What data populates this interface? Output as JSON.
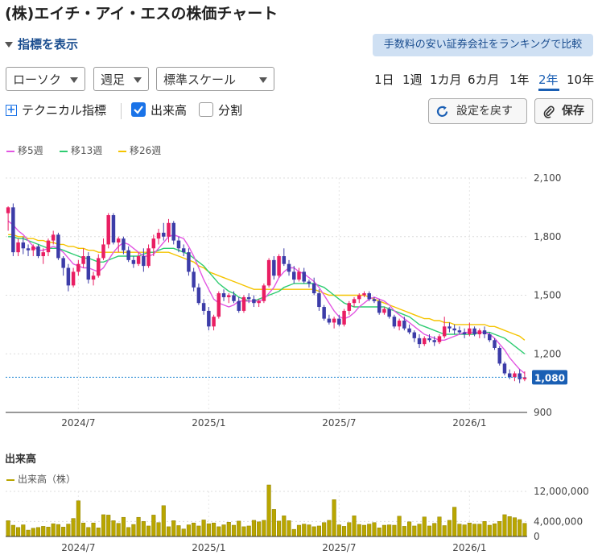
{
  "page": {
    "title": "(株)エイチ・アイ・エスの株価チャート",
    "indicator_toggle": "指標を表示",
    "ranking_link": "手数料の安い証券会社をランキングで比較"
  },
  "controls": {
    "chart_type": "ローソク",
    "interval": "週足",
    "scale": "標準スケール",
    "periods": [
      "1日",
      "1週",
      "1カ月",
      "6カ月",
      "1年",
      "2年",
      "10年"
    ],
    "active_period": "2年",
    "technical": "テクニカル指標",
    "volume_checkbox": "出来高",
    "volume_checked": true,
    "split_checkbox": "分割",
    "split_checked": false,
    "reset_button": "設定を戻す",
    "save_button": "保存"
  },
  "colors": {
    "up": "#e91e63",
    "down": "#3c3ca8",
    "ma5": "#e256e2",
    "ma13": "#2ecc71",
    "ma26": "#f5c400",
    "volume": "#b9a600",
    "price_tag": "#1a5fb4",
    "accent": "#1a73e8"
  },
  "chart_data": {
    "type": "candlestick",
    "legend": [
      {
        "name": "移5週",
        "color": "#e256e2"
      },
      {
        "name": "移13週",
        "color": "#2ecc71"
      },
      {
        "name": "移26週",
        "color": "#f5c400"
      }
    ],
    "ylim": [
      900,
      2100
    ],
    "yticks": [
      "2,100",
      "1,800",
      "1,500",
      "1,200",
      "900"
    ],
    "ytick_values": [
      2100,
      1800,
      1500,
      1200,
      900
    ],
    "xticks": [
      "2024/7",
      "2025/1",
      "2025/7",
      "2026/1"
    ],
    "xtick_index": [
      14,
      40,
      66,
      92
    ],
    "current_price": 1080,
    "current_price_label": "1,080",
    "weeks": 104,
    "candles": [
      [
        1920,
        1955,
        1830,
        1950
      ],
      [
        1950,
        1970,
        1700,
        1720
      ],
      [
        1720,
        1790,
        1700,
        1770
      ],
      [
        1770,
        1800,
        1710,
        1740
      ],
      [
        1740,
        1760,
        1700,
        1730
      ],
      [
        1730,
        1760,
        1700,
        1750
      ],
      [
        1750,
        1760,
        1690,
        1700
      ],
      [
        1700,
        1740,
        1660,
        1720
      ],
      [
        1720,
        1790,
        1700,
        1780
      ],
      [
        1780,
        1830,
        1760,
        1810
      ],
      [
        1810,
        1820,
        1680,
        1690
      ],
      [
        1690,
        1700,
        1600,
        1640
      ],
      [
        1640,
        1660,
        1520,
        1550
      ],
      [
        1550,
        1640,
        1540,
        1620
      ],
      [
        1620,
        1680,
        1600,
        1660
      ],
      [
        1660,
        1740,
        1640,
        1700
      ],
      [
        1700,
        1720,
        1560,
        1580
      ],
      [
        1580,
        1620,
        1550,
        1600
      ],
      [
        1600,
        1710,
        1590,
        1690
      ],
      [
        1690,
        1790,
        1680,
        1760
      ],
      [
        1760,
        1920,
        1740,
        1910
      ],
      [
        1910,
        1920,
        1760,
        1770
      ],
      [
        1770,
        1800,
        1720,
        1790
      ],
      [
        1790,
        1800,
        1710,
        1730
      ],
      [
        1730,
        1750,
        1670,
        1680
      ],
      [
        1680,
        1700,
        1640,
        1660
      ],
      [
        1660,
        1720,
        1650,
        1700
      ],
      [
        1700,
        1740,
        1620,
        1650
      ],
      [
        1650,
        1760,
        1640,
        1740
      ],
      [
        1740,
        1810,
        1700,
        1790
      ],
      [
        1790,
        1840,
        1760,
        1820
      ],
      [
        1820,
        1870,
        1780,
        1800
      ],
      [
        1800,
        1890,
        1770,
        1870
      ],
      [
        1870,
        1880,
        1760,
        1780
      ],
      [
        1780,
        1800,
        1720,
        1740
      ],
      [
        1740,
        1760,
        1700,
        1720
      ],
      [
        1720,
        1740,
        1600,
        1620
      ],
      [
        1620,
        1640,
        1520,
        1540
      ],
      [
        1540,
        1560,
        1450,
        1460
      ],
      [
        1460,
        1480,
        1400,
        1420
      ],
      [
        1420,
        1440,
        1320,
        1340
      ],
      [
        1340,
        1400,
        1320,
        1390
      ],
      [
        1390,
        1520,
        1380,
        1510
      ],
      [
        1510,
        1530,
        1470,
        1490
      ],
      [
        1490,
        1510,
        1460,
        1500
      ],
      [
        1500,
        1520,
        1460,
        1470
      ],
      [
        1470,
        1490,
        1410,
        1420
      ],
      [
        1420,
        1500,
        1410,
        1490
      ],
      [
        1490,
        1510,
        1460,
        1480
      ],
      [
        1480,
        1500,
        1440,
        1460
      ],
      [
        1460,
        1480,
        1440,
        1470
      ],
      [
        1470,
        1560,
        1460,
        1550
      ],
      [
        1550,
        1690,
        1540,
        1680
      ],
      [
        1680,
        1700,
        1580,
        1600
      ],
      [
        1600,
        1710,
        1590,
        1700
      ],
      [
        1700,
        1740,
        1650,
        1660
      ],
      [
        1660,
        1680,
        1600,
        1620
      ],
      [
        1620,
        1650,
        1560,
        1580
      ],
      [
        1580,
        1640,
        1570,
        1620
      ],
      [
        1620,
        1640,
        1560,
        1570
      ],
      [
        1570,
        1580,
        1540,
        1560
      ],
      [
        1560,
        1590,
        1500,
        1510
      ],
      [
        1510,
        1530,
        1420,
        1440
      ],
      [
        1440,
        1450,
        1370,
        1380
      ],
      [
        1380,
        1400,
        1350,
        1360
      ],
      [
        1360,
        1390,
        1330,
        1380
      ],
      [
        1380,
        1400,
        1340,
        1350
      ],
      [
        1350,
        1430,
        1340,
        1420
      ],
      [
        1420,
        1470,
        1400,
        1460
      ],
      [
        1460,
        1490,
        1440,
        1480
      ],
      [
        1480,
        1510,
        1460,
        1500
      ],
      [
        1500,
        1520,
        1490,
        1510
      ],
      [
        1510,
        1520,
        1470,
        1480
      ],
      [
        1480,
        1490,
        1460,
        1470
      ],
      [
        1470,
        1480,
        1400,
        1410
      ],
      [
        1410,
        1440,
        1400,
        1430
      ],
      [
        1430,
        1440,
        1380,
        1390
      ],
      [
        1390,
        1400,
        1330,
        1340
      ],
      [
        1340,
        1380,
        1320,
        1370
      ],
      [
        1370,
        1390,
        1320,
        1330
      ],
      [
        1330,
        1350,
        1300,
        1310
      ],
      [
        1310,
        1320,
        1260,
        1280
      ],
      [
        1280,
        1300,
        1230,
        1250
      ],
      [
        1250,
        1290,
        1240,
        1280
      ],
      [
        1280,
        1300,
        1260,
        1270
      ],
      [
        1270,
        1290,
        1240,
        1260
      ],
      [
        1260,
        1300,
        1250,
        1290
      ],
      [
        1290,
        1390,
        1280,
        1340
      ],
      [
        1340,
        1360,
        1310,
        1330
      ],
      [
        1330,
        1350,
        1300,
        1320
      ],
      [
        1320,
        1340,
        1300,
        1310
      ],
      [
        1310,
        1330,
        1280,
        1300
      ],
      [
        1300,
        1360,
        1290,
        1330
      ],
      [
        1330,
        1340,
        1290,
        1300
      ],
      [
        1300,
        1330,
        1280,
        1320
      ],
      [
        1320,
        1340,
        1280,
        1300
      ],
      [
        1300,
        1310,
        1260,
        1270
      ],
      [
        1270,
        1280,
        1220,
        1230
      ],
      [
        1230,
        1240,
        1140,
        1150
      ],
      [
        1150,
        1160,
        1090,
        1100
      ],
      [
        1100,
        1120,
        1070,
        1080
      ],
      [
        1080,
        1110,
        1060,
        1100
      ],
      [
        1100,
        1120,
        1050,
        1070
      ],
      [
        1070,
        1110,
        1060,
        1080
      ]
    ],
    "ma5": [
      1880,
      1860,
      1830,
      1810,
      1780,
      1750,
      1730,
      1730,
      1740,
      1750,
      1740,
      1720,
      1690,
      1660,
      1650,
      1640,
      1640,
      1630,
      1620,
      1640,
      1680,
      1720,
      1750,
      1770,
      1760,
      1740,
      1720,
      1700,
      1700,
      1710,
      1740,
      1770,
      1800,
      1810,
      1800,
      1790,
      1750,
      1700,
      1640,
      1580,
      1530,
      1480,
      1460,
      1450,
      1440,
      1450,
      1470,
      1470,
      1470,
      1470,
      1470,
      1480,
      1510,
      1540,
      1590,
      1620,
      1640,
      1640,
      1620,
      1610,
      1590,
      1570,
      1540,
      1500,
      1460,
      1420,
      1390,
      1380,
      1390,
      1410,
      1440,
      1460,
      1480,
      1490,
      1480,
      1470,
      1450,
      1420,
      1400,
      1380,
      1360,
      1340,
      1320,
      1300,
      1290,
      1280,
      1270,
      1270,
      1280,
      1290,
      1300,
      1310,
      1310,
      1310,
      1310,
      1310,
      1300,
      1280,
      1250,
      1220,
      1180,
      1150,
      1120,
      1100
    ],
    "ma13": [
      1800,
      1800,
      1790,
      1790,
      1780,
      1770,
      1760,
      1750,
      1740,
      1740,
      1740,
      1730,
      1720,
      1710,
      1700,
      1690,
      1690,
      1680,
      1670,
      1670,
      1680,
      1690,
      1700,
      1700,
      1700,
      1700,
      1700,
      1710,
      1720,
      1720,
      1730,
      1740,
      1740,
      1740,
      1730,
      1720,
      1710,
      1690,
      1670,
      1650,
      1620,
      1590,
      1560,
      1540,
      1520,
      1510,
      1490,
      1480,
      1470,
      1470,
      1480,
      1490,
      1500,
      1510,
      1520,
      1540,
      1550,
      1560,
      1560,
      1560,
      1560,
      1560,
      1550,
      1540,
      1520,
      1500,
      1480,
      1460,
      1450,
      1440,
      1440,
      1440,
      1440,
      1440,
      1440,
      1440,
      1430,
      1420,
      1410,
      1400,
      1390,
      1370,
      1350,
      1340,
      1330,
      1320,
      1310,
      1300,
      1300,
      1300,
      1300,
      1300,
      1300,
      1300,
      1310,
      1310,
      1310,
      1300,
      1290,
      1280,
      1260,
      1240,
      1220,
      1200
    ],
    "ma26": [
      1810,
      1810,
      1800,
      1800,
      1790,
      1790,
      1780,
      1780,
      1770,
      1770,
      1760,
      1760,
      1750,
      1750,
      1740,
      1740,
      1730,
      1730,
      1720,
      1720,
      1720,
      1720,
      1720,
      1720,
      1720,
      1720,
      1720,
      1720,
      1720,
      1720,
      1720,
      1720,
      1720,
      1710,
      1700,
      1690,
      1680,
      1670,
      1650,
      1640,
      1620,
      1610,
      1600,
      1590,
      1580,
      1570,
      1560,
      1550,
      1540,
      1530,
      1530,
      1530,
      1530,
      1530,
      1530,
      1530,
      1530,
      1530,
      1530,
      1530,
      1530,
      1530,
      1520,
      1510,
      1500,
      1500,
      1500,
      1500,
      1500,
      1500,
      1500,
      1500,
      1490,
      1480,
      1470,
      1460,
      1450,
      1440,
      1430,
      1420,
      1410,
      1400,
      1390,
      1380,
      1380,
      1370,
      1370,
      1360,
      1360,
      1350,
      1350,
      1350,
      1350,
      1350,
      1350,
      1350,
      1340,
      1340,
      1330,
      1320,
      1310,
      1300,
      1290,
      1270
    ],
    "volume_title": "出来高",
    "volume_legend": "出来高（株）",
    "volume_ylim": [
      0,
      12000000
    ],
    "volume_yticks": [
      "12,000,000",
      "4,000,000",
      "0"
    ],
    "volume_ytick_values": [
      12000000,
      4000000,
      0
    ],
    "volume": [
      4200000,
      3000000,
      2400000,
      3100000,
      1700000,
      2200000,
      2400000,
      2700000,
      2500000,
      3400000,
      3200000,
      2500000,
      3300000,
      4800000,
      9500000,
      3600000,
      2400000,
      3600000,
      2300000,
      5800000,
      5700000,
      4200000,
      3500000,
      5100000,
      2400000,
      3200000,
      5100000,
      4000000,
      2800000,
      5700000,
      3700000,
      8200000,
      2600000,
      4200000,
      2900000,
      2000000,
      3100000,
      3600000,
      2800000,
      4400000,
      3400000,
      3600000,
      2600000,
      3100000,
      3800000,
      3000000,
      4100000,
      2600000,
      2800000,
      4300000,
      3900000,
      4300000,
      14000000,
      7200000,
      4100000,
      5500000,
      4200000,
      1900000,
      3000000,
      3300000,
      3100000,
      2600000,
      2800000,
      3700000,
      4300000,
      9800000,
      3100000,
      2700000,
      3700000,
      5500000,
      3200000,
      3000000,
      3300000,
      3700000,
      2300000,
      3000000,
      3100000,
      3000000,
      5400000,
      2700000,
      3900000,
      2800000,
      3300000,
      5200000,
      2800000,
      3500000,
      5200000,
      2900000,
      4300000,
      7800000,
      3300000,
      3100000,
      3600000,
      3300000,
      3300000,
      4000000,
      3000000,
      3400000,
      4000000,
      5800000,
      5300000,
      5000000,
      4500000,
      3500000
    ]
  }
}
